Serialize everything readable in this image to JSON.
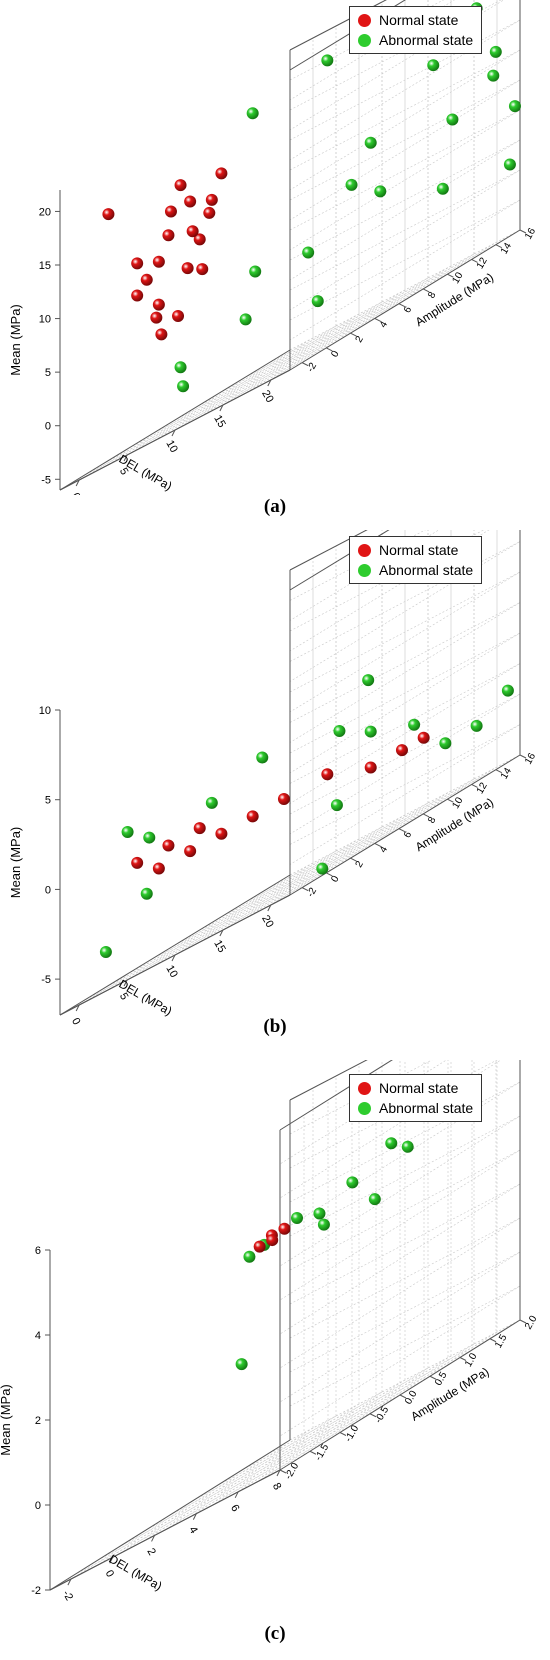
{
  "charts": [
    {
      "panel": "a",
      "caption_label": "(a)",
      "chart_data": {
        "type": "scatter",
        "xlabel": "DEL (MPa)",
        "ylabel": "Amplitude (MPa)",
        "zlabel": "Mean (MPa)",
        "xticks": [
          "0",
          "5",
          "10",
          "15",
          "20"
        ],
        "yticks": [
          "-2",
          "0",
          "2",
          "4",
          "6",
          "8",
          "10",
          "12",
          "14",
          "16"
        ],
        "zticks": [
          "-5",
          "0",
          "5",
          "10",
          "15",
          "20"
        ],
        "legend": [
          "Normal state",
          "Abnormal state"
        ],
        "legend_placement": "top-right",
        "grid": true,
        "series": [
          {
            "name": "Normal state",
            "color": "#e01515",
            "points": [
              [
                1,
                1,
                8
              ],
              [
                2,
                2,
                10
              ],
              [
                3,
                2,
                12
              ],
              [
                4,
                3,
                14
              ],
              [
                3,
                3,
                16
              ],
              [
                2,
                2,
                6
              ],
              [
                4,
                2,
                4
              ],
              [
                5,
                3,
                10
              ],
              [
                5,
                4,
                13
              ],
              [
                1,
                3,
                3
              ],
              [
                2,
                1,
                9
              ],
              [
                3,
                4,
                11
              ],
              [
                6,
                4,
                15
              ],
              [
                4,
                4,
                7
              ],
              [
                -2,
                1,
                17
              ],
              [
                5,
                2,
                8
              ],
              [
                6,
                3,
                12
              ],
              [
                2,
                3,
                14
              ],
              [
                1,
                1,
                11
              ],
              [
                3,
                1,
                5
              ]
            ]
          },
          {
            "name": "Abnormal state",
            "color": "#2ecc2e",
            "points": [
              [
                2,
                4,
                -3
              ],
              [
                6,
                6,
                0
              ],
              [
                10,
                8,
                3
              ],
              [
                12,
                10,
                7
              ],
              [
                14,
                10,
                10
              ],
              [
                18,
                12,
                14
              ],
              [
                20,
                14,
                17
              ],
              [
                22,
                14,
                12
              ],
              [
                25,
                16,
                19
              ],
              [
                8,
                5,
                19
              ],
              [
                12,
                8,
                20
              ],
              [
                16,
                12,
                18
              ],
              [
                20,
                12,
                8
              ],
              [
                24,
                14,
                6
              ],
              [
                26,
                12,
                1
              ],
              [
                3,
                3,
                -1
              ],
              [
                7,
                6,
                4
              ],
              [
                11,
                8,
                -2
              ],
              [
                15,
                10,
                5
              ],
              [
                19,
                12,
                2
              ],
              [
                23,
                13,
                10
              ],
              [
                27,
                15,
                15
              ]
            ]
          }
        ]
      }
    },
    {
      "panel": "b",
      "caption_label": "(b)",
      "chart_data": {
        "type": "scatter",
        "xlabel": "DEL (MPa)",
        "ylabel": "Amplitude (MPa)",
        "zlabel": "Mean (MPa)",
        "xticks": [
          "0",
          "5",
          "10",
          "15",
          "20"
        ],
        "yticks": [
          "-2",
          "0",
          "2",
          "4",
          "6",
          "8",
          "10",
          "12",
          "14",
          "16"
        ],
        "zticks": [
          "-5",
          "0",
          "5",
          "10"
        ],
        "legend": [
          "Normal state",
          "Abnormal state"
        ],
        "legend_placement": "top-right",
        "grid": true,
        "series": [
          {
            "name": "Normal state",
            "color": "#e01515",
            "points": [
              [
                1,
                1,
                -1
              ],
              [
                2,
                2,
                -2
              ],
              [
                3,
                2,
                -1
              ],
              [
                4,
                3,
                -2
              ],
              [
                5,
                3,
                -1
              ],
              [
                6,
                4,
                -2
              ],
              [
                8,
                5,
                -2
              ],
              [
                10,
                6,
                -2
              ],
              [
                12,
                8,
                -2
              ],
              [
                14,
                10,
                -3
              ],
              [
                16,
                11,
                -3
              ],
              [
                17,
                12,
                -3
              ]
            ]
          },
          {
            "name": "Abnormal state",
            "color": "#2ecc2e",
            "points": [
              [
                0,
                1,
                1
              ],
              [
                1,
                2,
                0
              ],
              [
                2,
                1,
                -3
              ],
              [
                5,
                4,
                0
              ],
              [
                12,
                9,
                0
              ],
              [
                14,
                10,
                -1
              ],
              [
                16,
                12,
                -2
              ],
              [
                18,
                13,
                -4
              ],
              [
                20,
                14,
                -4
              ],
              [
                22,
                15,
                -3
              ],
              [
                15,
                9,
                2
              ],
              [
                9,
                5,
                1
              ],
              [
                -1,
                0,
                -5
              ],
              [
                14,
                6,
                -7
              ],
              [
                13,
                8,
                -4
              ]
            ]
          }
        ]
      }
    },
    {
      "panel": "c",
      "caption_label": "(c)",
      "chart_data": {
        "type": "scatter",
        "xlabel": "DEL (MPa)",
        "ylabel": "Amplitude (MPa)",
        "zlabel": "Mean (MPa)",
        "xticks": [
          "-2",
          "0",
          "2",
          "4",
          "6",
          "8"
        ],
        "yticks": [
          "-2.0",
          "-1.5",
          "-1.0",
          "-0.5",
          "0.0",
          "0.5",
          "1.0",
          "1.5",
          "2.0"
        ],
        "zticks": [
          "-2",
          "0",
          "2",
          "4",
          "6"
        ],
        "legend": [
          "Normal state",
          "Abnormal state"
        ],
        "legend_placement": "top-right",
        "grid": true,
        "series": [
          {
            "name": "Normal state",
            "color": "#e01515",
            "points": [
              [
                1,
                0.1,
                3.2
              ],
              [
                1.3,
                0.2,
                3.3
              ],
              [
                1.6,
                0.1,
                3.2
              ],
              [
                1.9,
                0.2,
                3.3
              ]
            ]
          },
          {
            "name": "Abnormal state",
            "color": "#2ecc2e",
            "points": [
              [
                0.8,
                0,
                3.1
              ],
              [
                1.5,
                0,
                3.2
              ],
              [
                2.5,
                0.2,
                3.4
              ],
              [
                3,
                0.4,
                3.2
              ],
              [
                4,
                0.6,
                3.5
              ],
              [
                5,
                0.9,
                3.9
              ],
              [
                5.5,
                1.0,
                3.6
              ],
              [
                4.5,
                0.8,
                2.8
              ],
              [
                6,
                1.2,
                5.5
              ],
              [
                7,
                1.5,
                3.7
              ],
              [
                1,
                -0.2,
                0.7
              ],
              [
                3.5,
                0.3,
                2.9
              ]
            ]
          }
        ]
      }
    }
  ]
}
